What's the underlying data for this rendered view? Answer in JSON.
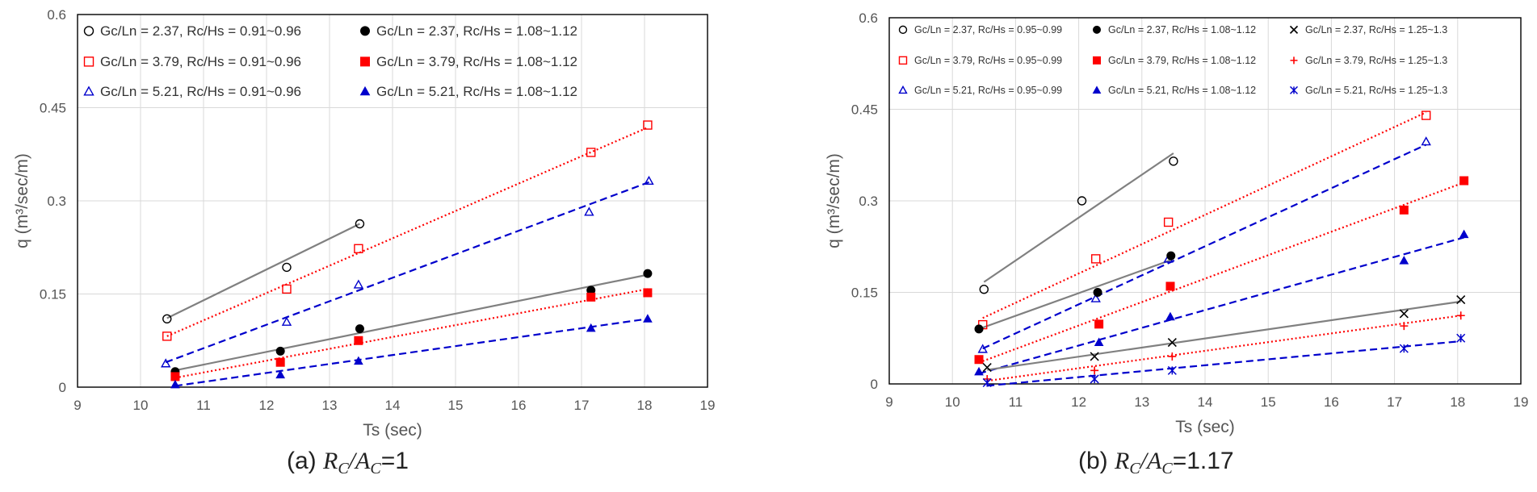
{
  "chart_data": [
    {
      "type": "scatter",
      "caption": {
        "prefix": "(a) ",
        "ratio_value": "=1"
      },
      "xlabel": "Ts (sec)",
      "ylabel": "q (m³/sec/m)",
      "xlim": [
        9,
        19
      ],
      "ylim": [
        0,
        0.6
      ],
      "xticks": [
        "9",
        "10",
        "11",
        "12",
        "13",
        "14",
        "15",
        "16",
        "17",
        "18",
        "19"
      ],
      "yticks": [
        "0",
        "0.15",
        "0.3",
        "0.45",
        "0.6"
      ],
      "grid": true,
      "legend_position": "top-left",
      "legend_columns": 2,
      "series": [
        {
          "name": "Gc/Ln = 2.37, Rc/Hs = 0.91~0.96",
          "marker": "circle-open",
          "color": "#000000",
          "points": [
            [
              10.42,
              0.11
            ],
            [
              12.32,
              0.193
            ],
            [
              13.48,
              0.263
            ]
          ],
          "trend": {
            "x": [
              10.42,
              13.48
            ],
            "y": [
              0.111,
              0.263
            ],
            "style": "solid",
            "color": "#808080"
          }
        },
        {
          "name": "Gc/Ln = 3.79, Rc/Hs = 0.91~0.96",
          "marker": "square-open",
          "color": "#ff0000",
          "points": [
            [
              10.42,
              0.082
            ],
            [
              12.32,
              0.158
            ],
            [
              13.46,
              0.223
            ],
            [
              17.15,
              0.378
            ],
            [
              18.05,
              0.422
            ]
          ],
          "trend": {
            "x": [
              10.42,
              18.05
            ],
            "y": [
              0.082,
              0.418
            ],
            "style": "dotted",
            "color": "#ff0000"
          }
        },
        {
          "name": "Gc/Ln = 5.21, Rc/Hs = 0.91~0.96",
          "marker": "triangle-open",
          "color": "#0000cc",
          "points": [
            [
              10.4,
              0.038
            ],
            [
              12.32,
              0.105
            ],
            [
              13.46,
              0.165
            ],
            [
              17.12,
              0.282
            ],
            [
              18.07,
              0.332
            ]
          ],
          "trend": {
            "x": [
              10.4,
              18.07
            ],
            "y": [
              0.04,
              0.33
            ],
            "style": "dashed",
            "color": "#0000cc"
          }
        },
        {
          "name": "Gc/Ln = 2.37, Rc/Hs = 1.08~1.12",
          "marker": "circle-filled",
          "color": "#000000",
          "points": [
            [
              10.55,
              0.025
            ],
            [
              12.22,
              0.058
            ],
            [
              13.48,
              0.094
            ],
            [
              17.15,
              0.156
            ],
            [
              18.05,
              0.183
            ]
          ],
          "trend": {
            "x": [
              10.55,
              18.05
            ],
            "y": [
              0.027,
              0.181
            ],
            "style": "solid",
            "color": "#808080"
          }
        },
        {
          "name": "Gc/Ln = 3.79, Rc/Hs = 1.08~1.12",
          "marker": "square-filled",
          "color": "#ff0000",
          "points": [
            [
              10.55,
              0.017
            ],
            [
              12.22,
              0.04
            ],
            [
              13.46,
              0.075
            ],
            [
              17.15,
              0.145
            ],
            [
              18.05,
              0.152
            ]
          ],
          "trend": {
            "x": [
              10.55,
              18.05
            ],
            "y": [
              0.015,
              0.158
            ],
            "style": "dotted",
            "color": "#ff0000"
          }
        },
        {
          "name": "Gc/Ln = 5.21, Rc/Hs = 1.08~1.12",
          "marker": "triangle-filled",
          "color": "#0000cc",
          "points": [
            [
              10.55,
              0.004
            ],
            [
              12.22,
              0.02
            ],
            [
              13.46,
              0.042
            ],
            [
              17.15,
              0.095
            ],
            [
              18.05,
              0.11
            ]
          ],
          "trend": {
            "x": [
              10.55,
              18.05
            ],
            "y": [
              0.002,
              0.11
            ],
            "style": "dashed",
            "color": "#0000cc"
          }
        }
      ]
    },
    {
      "type": "scatter",
      "caption": {
        "prefix": "(b) ",
        "ratio_value": "=1.17"
      },
      "xlabel": "Ts (sec)",
      "ylabel": "q (m³/sec/m)",
      "xlim": [
        9,
        19
      ],
      "ylim": [
        0,
        0.6
      ],
      "xticks": [
        "9",
        "10",
        "11",
        "12",
        "13",
        "14",
        "15",
        "16",
        "17",
        "18",
        "19"
      ],
      "yticks": [
        "0",
        "0.15",
        "0.3",
        "0.45",
        "0.6"
      ],
      "grid": true,
      "legend_position": "top",
      "legend_columns": 3,
      "series": [
        {
          "name": "Gc/Ln = 2.37, Rc/Hs = 0.95~0.99",
          "marker": "circle-open",
          "color": "#000000",
          "points": [
            [
              10.5,
              0.155
            ],
            [
              12.05,
              0.3
            ],
            [
              13.5,
              0.365
            ]
          ],
          "trend": {
            "x": [
              10.5,
              13.5
            ],
            "y": [
              0.167,
              0.378
            ],
            "style": "solid",
            "color": "#808080"
          }
        },
        {
          "name": "Gc/Ln = 3.79, Rc/Hs = 0.95~0.99",
          "marker": "square-open",
          "color": "#ff0000",
          "points": [
            [
              10.48,
              0.097
            ],
            [
              12.27,
              0.205
            ],
            [
              13.42,
              0.265
            ],
            [
              17.5,
              0.44
            ]
          ],
          "trend": {
            "x": [
              10.48,
              17.5
            ],
            "y": [
              0.108,
              0.445
            ],
            "style": "dotted",
            "color": "#ff0000"
          }
        },
        {
          "name": "Gc/Ln = 5.21, Rc/Hs = 0.95~0.99",
          "marker": "triangle-open",
          "color": "#0000cc",
          "points": [
            [
              10.48,
              0.057
            ],
            [
              12.27,
              0.14
            ],
            [
              13.42,
              0.205
            ],
            [
              17.5,
              0.397
            ]
          ],
          "trend": {
            "x": [
              10.48,
              17.5
            ],
            "y": [
              0.058,
              0.392
            ],
            "style": "dashed",
            "color": "#0000cc"
          }
        },
        {
          "name": "Gc/Ln = 2.37, Rc/Hs = 1.08~1.12",
          "marker": "circle-filled",
          "color": "#000000",
          "points": [
            [
              10.42,
              0.09
            ],
            [
              12.3,
              0.15
            ],
            [
              13.46,
              0.21
            ]
          ],
          "trend": {
            "x": [
              10.42,
              13.46
            ],
            "y": [
              0.09,
              0.203
            ],
            "style": "solid",
            "color": "#808080"
          }
        },
        {
          "name": "Gc/Ln = 3.79, Rc/Hs = 1.08~1.12",
          "marker": "square-filled",
          "color": "#ff0000",
          "points": [
            [
              10.42,
              0.04
            ],
            [
              12.32,
              0.098
            ],
            [
              13.45,
              0.16
            ],
            [
              17.15,
              0.285
            ],
            [
              18.1,
              0.333
            ]
          ],
          "trend": {
            "x": [
              10.42,
              18.1
            ],
            "y": [
              0.035,
              0.33
            ],
            "style": "dotted",
            "color": "#ff0000"
          }
        },
        {
          "name": "Gc/Ln = 5.21, Rc/Hs = 1.08~1.12",
          "marker": "triangle-filled",
          "color": "#0000cc",
          "points": [
            [
              10.42,
              0.02
            ],
            [
              12.32,
              0.068
            ],
            [
              13.45,
              0.11
            ],
            [
              17.15,
              0.202
            ],
            [
              18.1,
              0.245
            ]
          ],
          "trend": {
            "x": [
              10.42,
              18.1
            ],
            "y": [
              0.017,
              0.24
            ],
            "style": "dashed",
            "color": "#0000cc"
          }
        },
        {
          "name": "Gc/Ln = 2.37, Rc/Hs = 1.25~1.3",
          "marker": "x",
          "color": "#000000",
          "points": [
            [
              10.55,
              0.027
            ],
            [
              12.25,
              0.045
            ],
            [
              13.48,
              0.068
            ],
            [
              17.15,
              0.115
            ],
            [
              18.05,
              0.138
            ]
          ],
          "trend": {
            "x": [
              10.55,
              18.05
            ],
            "y": [
              0.023,
              0.135
            ],
            "style": "solid",
            "color": "#808080"
          }
        },
        {
          "name": "Gc/Ln = 3.79, Rc/Hs = 1.25~1.3",
          "marker": "plus",
          "color": "#ff0000",
          "points": [
            [
              10.55,
              0.008
            ],
            [
              12.25,
              0.022
            ],
            [
              13.48,
              0.045
            ],
            [
              17.15,
              0.095
            ],
            [
              18.05,
              0.112
            ]
          ],
          "trend": {
            "x": [
              10.55,
              18.05
            ],
            "y": [
              0.005,
              0.112
            ],
            "style": "dotted",
            "color": "#ff0000"
          }
        },
        {
          "name": "Gc/Ln = 5.21, Rc/Hs = 1.25~1.3",
          "marker": "asterisk",
          "color": "#0000cc",
          "points": [
            [
              10.55,
              0.002
            ],
            [
              12.25,
              0.008
            ],
            [
              13.48,
              0.022
            ],
            [
              17.15,
              0.058
            ],
            [
              18.05,
              0.075
            ]
          ],
          "trend": {
            "x": [
              10.55,
              18.05
            ],
            "y": [
              -0.003,
              0.07
            ],
            "style": "dashed",
            "color": "#0000cc"
          }
        }
      ]
    }
  ]
}
